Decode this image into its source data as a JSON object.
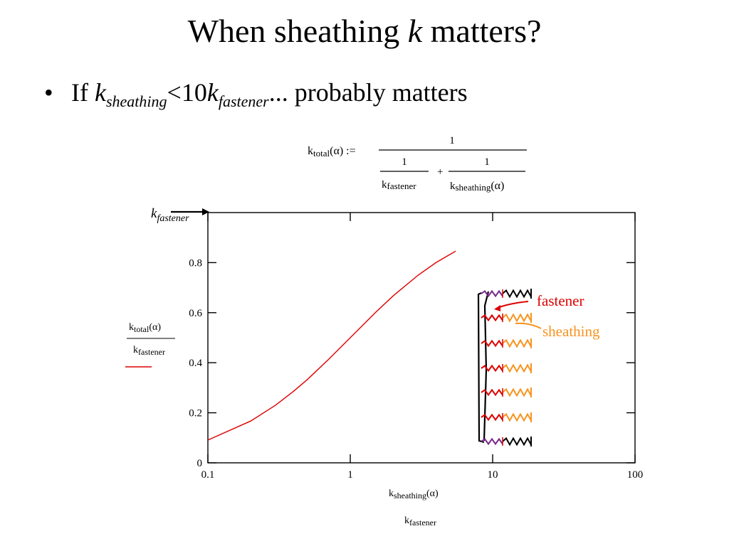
{
  "slide": {
    "title_prefix": "When sheathing ",
    "title_var": "k",
    "title_suffix": " matters?",
    "bullet": {
      "marker": "•",
      "if": "If ",
      "k1": "k",
      "k1_sub": "sheathing",
      "op": "<10",
      "k2": "k",
      "k2_sub": "fastener",
      "tail": "... probably matters"
    }
  },
  "formula": {
    "lhs_k": "k",
    "lhs_sub": "total",
    "lhs_arg": "(α) :=",
    "numerator": "1",
    "term1_num": "1",
    "term1_k": "k",
    "term1_sub": "fastener",
    "plus": "+",
    "term2_num": "1",
    "term2_k": "k",
    "term2_sub": "sheathing",
    "term2_arg": "(α)"
  },
  "annotations": {
    "top_marker_k": "k",
    "top_marker_sub": "fastener",
    "fastener_label": "fastener",
    "sheathing_label": "sheathing",
    "fastener_color": "#dd0000",
    "sheathing_color": "#f7931e",
    "purple_color": "#7b2a8c",
    "bracket_color": "#000000"
  },
  "chart_data": {
    "type": "line",
    "title": "",
    "x_scale": "log",
    "xlim": [
      0.1,
      100
    ],
    "ylim": [
      0,
      1
    ],
    "x_ticks": [
      "0.1",
      "1",
      "10",
      "100"
    ],
    "y_ticks": [
      "0",
      "0.2",
      "0.4",
      "0.6",
      "0.8"
    ],
    "xlabel": {
      "num_k": "k",
      "num_sub": "sheathing",
      "num_arg": "(α)",
      "den_k": "k",
      "den_sub": "fastener"
    },
    "ylabel": {
      "num_k": "k",
      "num_sub": "total",
      "num_arg": "(α)",
      "den_k": "k",
      "den_sub": "fastener"
    },
    "grid": false,
    "series": [
      {
        "color": "#dd0000",
        "x": [
          0.1,
          0.2,
          0.3,
          0.4,
          0.5,
          0.7,
          1.0,
          1.5,
          2.0,
          3.0,
          4.0,
          5.5
        ],
        "y": [
          0.091,
          0.167,
          0.231,
          0.286,
          0.333,
          0.412,
          0.5,
          0.6,
          0.667,
          0.75,
          0.8,
          0.846
        ]
      }
    ]
  }
}
